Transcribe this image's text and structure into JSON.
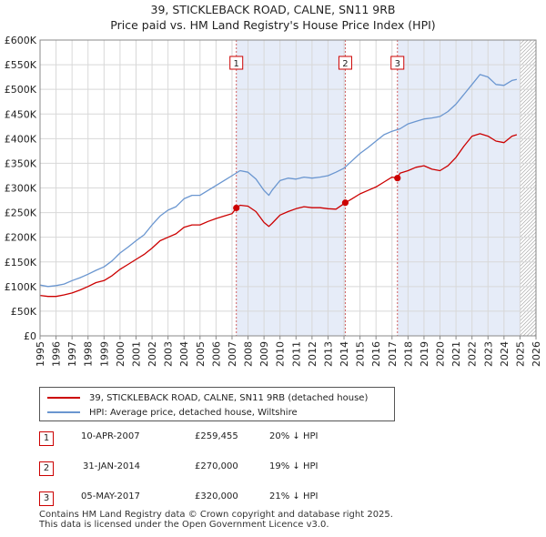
{
  "title_line1": "39, STICKLEBACK ROAD, CALNE, SN11 9RB",
  "title_line2": "Price paid vs. HM Land Registry's House Price Index (HPI)",
  "legend": {
    "property": "39, STICKLEBACK ROAD, CALNE, SN11 9RB (detached house)",
    "hpi": "HPI: Average price, detached house, Wiltshire"
  },
  "colors": {
    "property": "#cc0000",
    "hpi": "#6a96d0",
    "shade": "#e6ecf8",
    "marker_line": "#d06060"
  },
  "sales": [
    {
      "num": "1",
      "date": "10-APR-2007",
      "price": "£259,455",
      "delta": "20% ↓ HPI"
    },
    {
      "num": "2",
      "date": "31-JAN-2014",
      "price": "£270,000",
      "delta": "19% ↓ HPI"
    },
    {
      "num": "3",
      "date": "05-MAY-2017",
      "price": "£320,000",
      "delta": "21% ↓ HPI"
    }
  ],
  "footer_line1": "Contains HM Land Registry data © Crown copyright and database right 2025.",
  "footer_line2": "This data is licensed under the Open Government Licence v3.0.",
  "chart_data": {
    "type": "line",
    "title": "39, STICKLEBACK ROAD, CALNE, SN11 9RB — Price paid vs. HM Land Registry's House Price Index (HPI)",
    "xlabel": "",
    "ylabel": "",
    "xlim": [
      1995,
      2026
    ],
    "ylim": [
      0,
      600000
    ],
    "y_ticks": [
      0,
      50000,
      100000,
      150000,
      200000,
      250000,
      300000,
      350000,
      400000,
      450000,
      500000,
      550000,
      600000
    ],
    "y_tick_labels": [
      "£0",
      "£50K",
      "£100K",
      "£150K",
      "£200K",
      "£250K",
      "£300K",
      "£350K",
      "£400K",
      "£450K",
      "£500K",
      "£550K",
      "£600K"
    ],
    "x_ticks": [
      1995,
      1996,
      1997,
      1998,
      1999,
      2000,
      2001,
      2002,
      2003,
      2004,
      2005,
      2006,
      2007,
      2008,
      2009,
      2010,
      2011,
      2012,
      2013,
      2014,
      2015,
      2016,
      2017,
      2018,
      2019,
      2020,
      2021,
      2022,
      2023,
      2024,
      2025,
      2026
    ],
    "x_tick_labels": [
      "1995",
      "1996",
      "1997",
      "1998",
      "1999",
      "2000",
      "2001",
      "2002",
      "2003",
      "2004",
      "2005",
      "2006",
      "2007",
      "2008",
      "2009",
      "2010",
      "2011",
      "2012",
      "2013",
      "2014",
      "2015",
      "2016",
      "2017",
      "2018",
      "2019",
      "2020",
      "2021",
      "2022",
      "2023",
      "2024",
      "2025",
      "2026"
    ],
    "grid": true,
    "shaded_ranges": [
      [
        2007.27,
        2014.08
      ],
      [
        2017.34,
        2025.0
      ]
    ],
    "hatched_from": 2025.0,
    "series": [
      {
        "name": "39, STICKLEBACK ROAD, CALNE, SN11 9RB (detached house)",
        "x": [
          1995.0,
          1995.5,
          1996.0,
          1996.5,
          1997.0,
          1997.5,
          1998.0,
          1998.5,
          1999.0,
          1999.5,
          2000.0,
          2000.5,
          2001.0,
          2001.5,
          2002.0,
          2002.5,
          2003.0,
          2003.5,
          2004.0,
          2004.5,
          2005.0,
          2005.5,
          2006.0,
          2006.5,
          2007.0,
          2007.27,
          2007.5,
          2008.0,
          2008.5,
          2009.0,
          2009.3,
          2009.5,
          2010.0,
          2010.5,
          2011.0,
          2011.5,
          2012.0,
          2012.5,
          2013.0,
          2013.5,
          2014.08,
          2014.5,
          2015.0,
          2015.5,
          2016.0,
          2016.5,
          2017.0,
          2017.34,
          2017.5,
          2018.0,
          2018.5,
          2019.0,
          2019.5,
          2020.0,
          2020.5,
          2021.0,
          2021.5,
          2022.0,
          2022.5,
          2023.0,
          2023.5,
          2024.0,
          2024.5,
          2024.8
        ],
        "y": [
          82000,
          80000,
          80000,
          83000,
          87000,
          93000,
          100000,
          108000,
          112000,
          122000,
          135000,
          145000,
          155000,
          165000,
          178000,
          193000,
          200000,
          207000,
          220000,
          225000,
          225000,
          232000,
          238000,
          243000,
          248000,
          259455,
          265000,
          263000,
          252000,
          230000,
          222000,
          228000,
          245000,
          252000,
          258000,
          262000,
          260000,
          260000,
          258000,
          257000,
          270000,
          278000,
          288000,
          295000,
          302000,
          312000,
          322000,
          320000,
          330000,
          335000,
          342000,
          345000,
          338000,
          335000,
          345000,
          362000,
          385000,
          405000,
          410000,
          405000,
          395000,
          392000,
          405000,
          408000
        ]
      },
      {
        "name": "HPI: Average price, detached house, Wiltshire",
        "x": [
          1995.0,
          1995.5,
          1996.0,
          1996.5,
          1997.0,
          1997.5,
          1998.0,
          1998.5,
          1999.0,
          1999.5,
          2000.0,
          2000.5,
          2001.0,
          2001.5,
          2002.0,
          2002.5,
          2003.0,
          2003.5,
          2004.0,
          2004.5,
          2005.0,
          2005.5,
          2006.0,
          2006.5,
          2007.0,
          2007.5,
          2008.0,
          2008.5,
          2009.0,
          2009.3,
          2009.5,
          2010.0,
          2010.5,
          2011.0,
          2011.5,
          2012.0,
          2012.5,
          2013.0,
          2013.5,
          2014.0,
          2014.5,
          2015.0,
          2015.5,
          2016.0,
          2016.5,
          2017.0,
          2017.5,
          2018.0,
          2018.5,
          2019.0,
          2019.5,
          2020.0,
          2020.5,
          2021.0,
          2021.5,
          2022.0,
          2022.5,
          2023.0,
          2023.5,
          2024.0,
          2024.5,
          2024.8
        ],
        "y": [
          103000,
          100000,
          102000,
          105000,
          112000,
          118000,
          125000,
          133000,
          140000,
          152000,
          168000,
          180000,
          193000,
          205000,
          225000,
          243000,
          255000,
          262000,
          278000,
          285000,
          285000,
          295000,
          305000,
          315000,
          325000,
          335000,
          332000,
          318000,
          295000,
          285000,
          295000,
          315000,
          320000,
          318000,
          322000,
          320000,
          322000,
          325000,
          332000,
          340000,
          355000,
          370000,
          382000,
          395000,
          408000,
          415000,
          420000,
          430000,
          435000,
          440000,
          442000,
          445000,
          455000,
          470000,
          490000,
          510000,
          530000,
          525000,
          510000,
          508000,
          518000,
          520000
        ]
      }
    ],
    "sales_points": [
      {
        "label": "1",
        "x": 2007.27,
        "y": 259455
      },
      {
        "label": "2",
        "x": 2014.08,
        "y": 270000
      },
      {
        "label": "3",
        "x": 2017.34,
        "y": 320000
      }
    ]
  }
}
